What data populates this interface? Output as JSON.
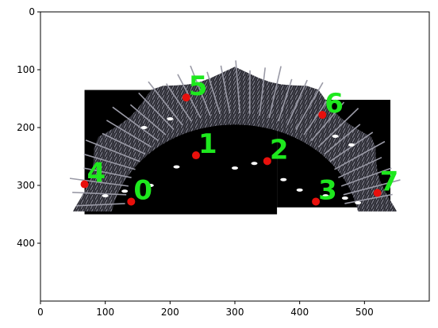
{
  "chart_data": {
    "type": "scatter",
    "title": "",
    "xlabel": "",
    "ylabel": "",
    "xlim": [
      0,
      600
    ],
    "ylim": [
      500,
      0
    ],
    "y_inverted": true,
    "grid": false,
    "x_ticks": [
      0,
      100,
      200,
      300,
      400,
      500
    ],
    "y_ticks": [
      0,
      100,
      200,
      300,
      400
    ],
    "background_image": "fisheye-view-of-tall-grass-arc-on-black",
    "colors": {
      "marker": "#e8100c",
      "label": "#1ee81e",
      "axes": "#000000"
    },
    "points": [
      {
        "label": "0",
        "x": 140,
        "y": 328
      },
      {
        "label": "1",
        "x": 240,
        "y": 248
      },
      {
        "label": "2",
        "x": 350,
        "y": 258
      },
      {
        "label": "3",
        "x": 425,
        "y": 328
      },
      {
        "label": "4",
        "x": 68,
        "y": 298
      },
      {
        "label": "5",
        "x": 225,
        "y": 148
      },
      {
        "label": "6",
        "x": 435,
        "y": 178
      },
      {
        "label": "7",
        "x": 520,
        "y": 313
      }
    ]
  }
}
